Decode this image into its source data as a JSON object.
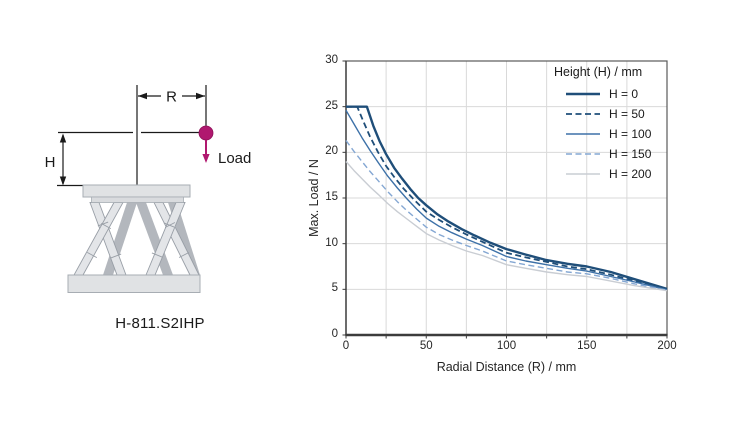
{
  "diagram": {
    "caption": "H-811.S2IHP",
    "labels": {
      "radius": "R",
      "height": "H",
      "load": "Load"
    },
    "colors": {
      "load_accent": "#b0186f",
      "structure_fill": "#e3e5e8",
      "structure_dark": "#b3b7bd",
      "line": "#1a1a1a"
    }
  },
  "chart_data": {
    "type": "line",
    "title": "",
    "xlabel": "Radial Distance (R) / mm",
    "ylabel": "Max. Load / N",
    "legend_title": "Height (H) / mm",
    "legend_position": "top-right",
    "grid": true,
    "xlim": [
      0,
      200
    ],
    "ylim": [
      0,
      30
    ],
    "xticks": [
      0,
      50,
      100,
      150,
      200
    ],
    "yticks": [
      0,
      5,
      10,
      15,
      20,
      25,
      30
    ],
    "x_minor_step": 25,
    "y_grid_step": 5,
    "colors": {
      "grid": "#d9d9d9",
      "border": "#595959",
      "axis": "#3c3c3c"
    },
    "series": [
      {
        "label": "H = 0",
        "color": "#1f4e79",
        "style": "solid",
        "width": 2.4,
        "points": [
          [
            0,
            25
          ],
          [
            13,
            25
          ],
          [
            17,
            22.9
          ],
          [
            21,
            21.2
          ],
          [
            25,
            19.8
          ],
          [
            30,
            18.3
          ],
          [
            35,
            17.1
          ],
          [
            40,
            16.0
          ],
          [
            45,
            15.0
          ],
          [
            50,
            14.2
          ],
          [
            57,
            13.2
          ],
          [
            64,
            12.4
          ],
          [
            72,
            11.6
          ],
          [
            80,
            10.9
          ],
          [
            90,
            10.1
          ],
          [
            100,
            9.4
          ],
          [
            112,
            8.8
          ],
          [
            125,
            8.2
          ],
          [
            138,
            7.8
          ],
          [
            150,
            7.5
          ],
          [
            165,
            6.9
          ],
          [
            180,
            6.1
          ],
          [
            200,
            5.05
          ]
        ]
      },
      {
        "label": "H = 50",
        "color": "#1f4e79",
        "style": "dashed",
        "width": 1.8,
        "points": [
          [
            0,
            25
          ],
          [
            7,
            25
          ],
          [
            11,
            23.3
          ],
          [
            15,
            21.7
          ],
          [
            20,
            20.0
          ],
          [
            25,
            18.5
          ],
          [
            30,
            17.3
          ],
          [
            36,
            16.0
          ],
          [
            43,
            14.7
          ],
          [
            50,
            13.5
          ],
          [
            58,
            12.6
          ],
          [
            66,
            11.8
          ],
          [
            75,
            11.0
          ],
          [
            85,
            10.2
          ],
          [
            100,
            9.0
          ],
          [
            112,
            8.5
          ],
          [
            125,
            8.0
          ],
          [
            138,
            7.5
          ],
          [
            150,
            7.2
          ],
          [
            165,
            6.6
          ],
          [
            180,
            5.9
          ],
          [
            200,
            5.0
          ]
        ]
      },
      {
        "label": "H = 100",
        "color": "#3d71a8",
        "style": "solid",
        "width": 1.4,
        "points": [
          [
            0,
            24.6
          ],
          [
            5,
            23.1
          ],
          [
            10,
            21.6
          ],
          [
            15,
            20.2
          ],
          [
            20,
            18.9
          ],
          [
            26,
            17.4
          ],
          [
            32,
            16.1
          ],
          [
            38,
            14.9
          ],
          [
            44,
            13.8
          ],
          [
            50,
            12.8
          ],
          [
            58,
            11.9
          ],
          [
            66,
            11.2
          ],
          [
            75,
            10.5
          ],
          [
            85,
            9.8
          ],
          [
            100,
            8.6
          ],
          [
            112,
            8.1
          ],
          [
            125,
            7.7
          ],
          [
            138,
            7.3
          ],
          [
            150,
            7.0
          ],
          [
            165,
            6.4
          ],
          [
            180,
            5.8
          ],
          [
            200,
            4.95
          ]
        ]
      },
      {
        "label": "H = 150",
        "color": "#84a7d3",
        "style": "dashed",
        "width": 1.4,
        "points": [
          [
            0,
            21.3
          ],
          [
            5,
            20.1
          ],
          [
            10,
            19.0
          ],
          [
            15,
            17.9
          ],
          [
            20,
            16.9
          ],
          [
            26,
            15.7
          ],
          [
            32,
            14.6
          ],
          [
            38,
            13.6
          ],
          [
            44,
            12.7
          ],
          [
            50,
            11.8
          ],
          [
            58,
            11.0
          ],
          [
            66,
            10.4
          ],
          [
            75,
            9.8
          ],
          [
            85,
            9.2
          ],
          [
            100,
            8.1
          ],
          [
            112,
            7.7
          ],
          [
            125,
            7.3
          ],
          [
            138,
            6.9
          ],
          [
            150,
            6.7
          ],
          [
            165,
            6.2
          ],
          [
            180,
            5.6
          ],
          [
            200,
            4.9
          ]
        ]
      },
      {
        "label": "H = 200",
        "color": "#c9cdd3",
        "style": "solid",
        "width": 1.4,
        "points": [
          [
            0,
            19.0
          ],
          [
            5,
            18.0
          ],
          [
            10,
            17.1
          ],
          [
            15,
            16.2
          ],
          [
            20,
            15.4
          ],
          [
            26,
            14.4
          ],
          [
            32,
            13.5
          ],
          [
            38,
            12.7
          ],
          [
            44,
            11.9
          ],
          [
            50,
            11.1
          ],
          [
            58,
            10.4
          ],
          [
            66,
            9.8
          ],
          [
            75,
            9.2
          ],
          [
            85,
            8.7
          ],
          [
            100,
            7.7
          ],
          [
            112,
            7.3
          ],
          [
            125,
            6.9
          ],
          [
            138,
            6.6
          ],
          [
            150,
            6.4
          ],
          [
            165,
            5.9
          ],
          [
            180,
            5.4
          ],
          [
            200,
            4.85
          ]
        ]
      }
    ]
  }
}
